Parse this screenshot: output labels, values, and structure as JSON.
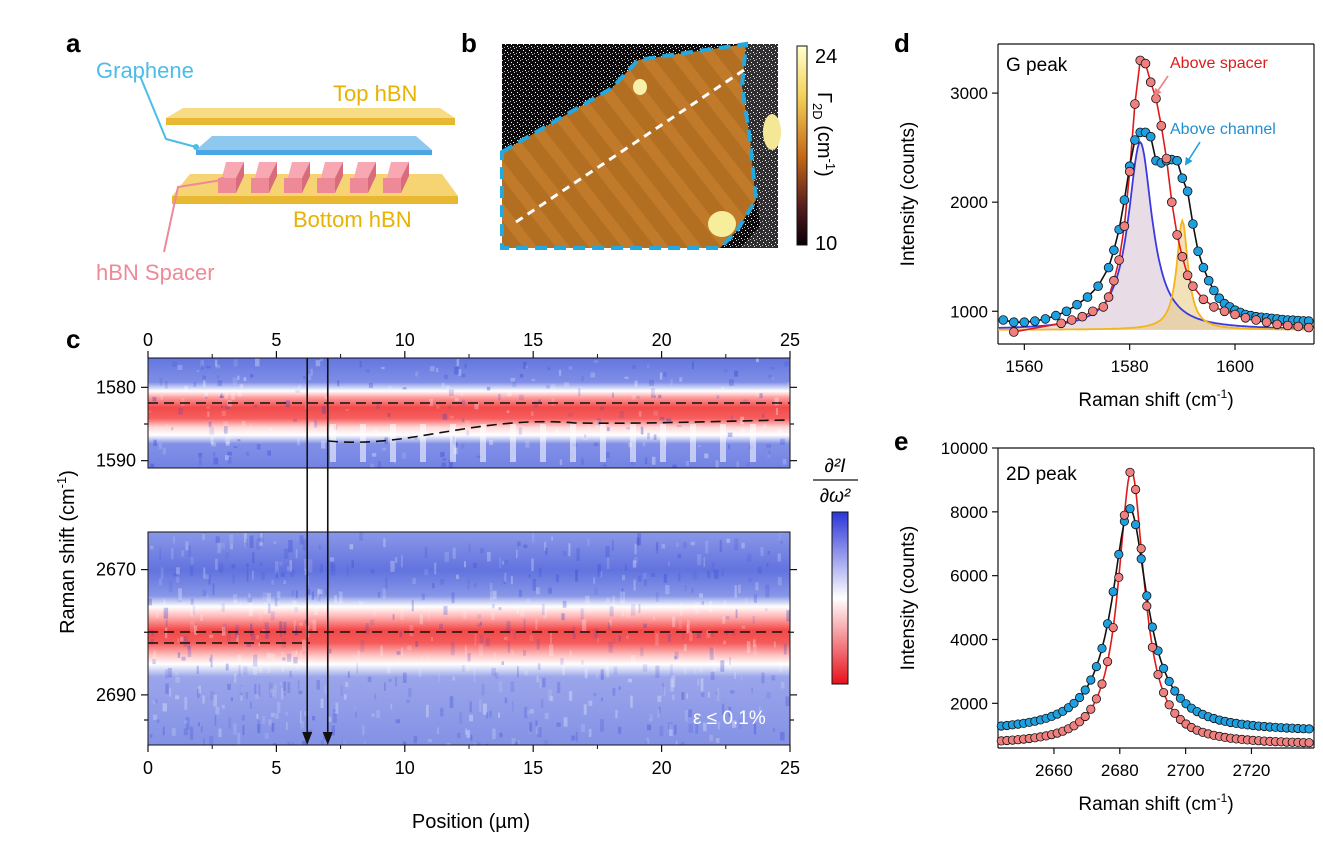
{
  "panels": {
    "a": {
      "letter": "a",
      "labels": {
        "graphene": "Graphene",
        "top_hbn": "Top hBN",
        "bottom_hbn": "Bottom hBN",
        "spacer": "hBN Spacer"
      },
      "colors": {
        "graphene": "#4bbde8",
        "hbn": "#f2c64e",
        "spacer": "#ee8a98"
      }
    },
    "b": {
      "letter": "b",
      "colorbar": {
        "label": "Γ",
        "sub": "2D",
        "unit": "(cm",
        "unit_exp": "-1",
        "unit_close": ")",
        "min": "10",
        "max": "24"
      }
    },
    "c": {
      "letter": "c",
      "xlabel": "Position (µm)",
      "ylabel": "Raman shift (cm",
      "ylabel_exp": "-1",
      "ylabel_close": ")",
      "x_range": [
        0,
        25
      ],
      "x_ticks": [
        "0",
        "5",
        "10",
        "15",
        "20",
        "25"
      ],
      "top_range": [
        1576,
        1591
      ],
      "top_ticks": [
        "1580",
        "1590"
      ],
      "bottom_range": [
        2664,
        2698
      ],
      "bottom_ticks": [
        "2670",
        "2690"
      ],
      "strain_note": "ε ≤ 0.1%",
      "arrows_at": [
        6.2,
        7.0
      ],
      "colorbar_label": "∂²I/∂ω²"
    },
    "d": {
      "letter": "d",
      "inset": "G peak",
      "label_spacer": "Above spacer",
      "label_channel": "Above channel"
    },
    "e": {
      "letter": "e",
      "inset": "2D peak"
    }
  },
  "chart_data": [
    {
      "panel": "d",
      "type": "scatter",
      "title": "G peak",
      "xlabel": "Raman shift (cm-1)",
      "ylabel": "Intensity (counts)",
      "xlim": [
        1555,
        1615
      ],
      "ylim": [
        700,
        3450
      ],
      "x_ticks": [
        "1560",
        "1580",
        "1600"
      ],
      "y_ticks": [
        "1000",
        "2000",
        "3000"
      ],
      "series": [
        {
          "name": "Above spacer",
          "color": "#f08080",
          "line": "#e01a1a",
          "x": [
            1558,
            1567,
            1569,
            1571,
            1573,
            1575,
            1576,
            1577,
            1578,
            1579,
            1580,
            1581,
            1582,
            1583,
            1584,
            1585,
            1586,
            1587,
            1588,
            1589,
            1590,
            1591,
            1592,
            1594,
            1596,
            1598,
            1600,
            1602,
            1604,
            1606,
            1608,
            1610,
            1612,
            1614
          ],
          "y": [
            810,
            890,
            920,
            950,
            1000,
            1040,
            1130,
            1280,
            1470,
            1780,
            2280,
            2900,
            3300,
            3270,
            3100,
            2950,
            2700,
            2400,
            2000,
            1700,
            1500,
            1330,
            1230,
            1110,
            1040,
            1000,
            970,
            940,
            920,
            900,
            880,
            870,
            860,
            850
          ]
        },
        {
          "name": "Above channel",
          "color": "#1e9fe0",
          "line": "#111111",
          "x": [
            1556,
            1558,
            1560,
            1562,
            1564,
            1566,
            1568,
            1570,
            1572,
            1574,
            1576,
            1577,
            1578,
            1579,
            1580,
            1581,
            1582,
            1583,
            1584,
            1585,
            1586,
            1587,
            1588,
            1589,
            1590,
            1591,
            1592,
            1593,
            1594,
            1595,
            1596,
            1597,
            1598,
            1599,
            1600,
            1601,
            1602,
            1603,
            1604,
            1605,
            1606,
            1607,
            1608,
            1609,
            1610,
            1611,
            1612,
            1613,
            1614
          ],
          "y": [
            920,
            900,
            900,
            910,
            930,
            960,
            1000,
            1060,
            1130,
            1230,
            1400,
            1560,
            1750,
            2020,
            2330,
            2570,
            2640,
            2640,
            2600,
            2380,
            2360,
            2380,
            2390,
            2380,
            2220,
            2100,
            1800,
            1550,
            1400,
            1280,
            1190,
            1120,
            1070,
            1040,
            1010,
            990,
            970,
            960,
            950,
            945,
            940,
            935,
            930,
            925,
            920,
            918,
            915,
            912,
            910
          ]
        },
        {
          "name": "Fit component 1 (blue)",
          "color": "#3a3ae0",
          "x0": 1582,
          "width": 5.5,
          "amp": 1720,
          "base": 830
        },
        {
          "name": "Fit component 2 (orange)",
          "color": "#f5b417",
          "x0": 1590,
          "width": 2.6,
          "amp": 1000,
          "base": 830
        }
      ]
    },
    {
      "panel": "e",
      "type": "scatter",
      "title": "2D peak",
      "xlabel": "Raman shift (cm-1)",
      "ylabel": "Intensity (counts)",
      "xlim": [
        2643,
        2739
      ],
      "ylim": [
        600,
        10000
      ],
      "x_ticks": [
        "2660",
        "2680",
        "2700",
        "2720"
      ],
      "y_ticks": [
        "2000",
        "4000",
        "6000",
        "8000",
        "10000"
      ],
      "series": [
        {
          "name": "Above spacer",
          "color": "#f08080",
          "line": "#e01a1a",
          "x0": 2683.5,
          "width": 9.5,
          "amp": 8600,
          "base": 700
        },
        {
          "name": "Above channel",
          "color": "#1e9fe0",
          "line": "#111111",
          "x0": 2683,
          "width": 13,
          "amp": 7000,
          "base": 1100
        }
      ]
    }
  ]
}
